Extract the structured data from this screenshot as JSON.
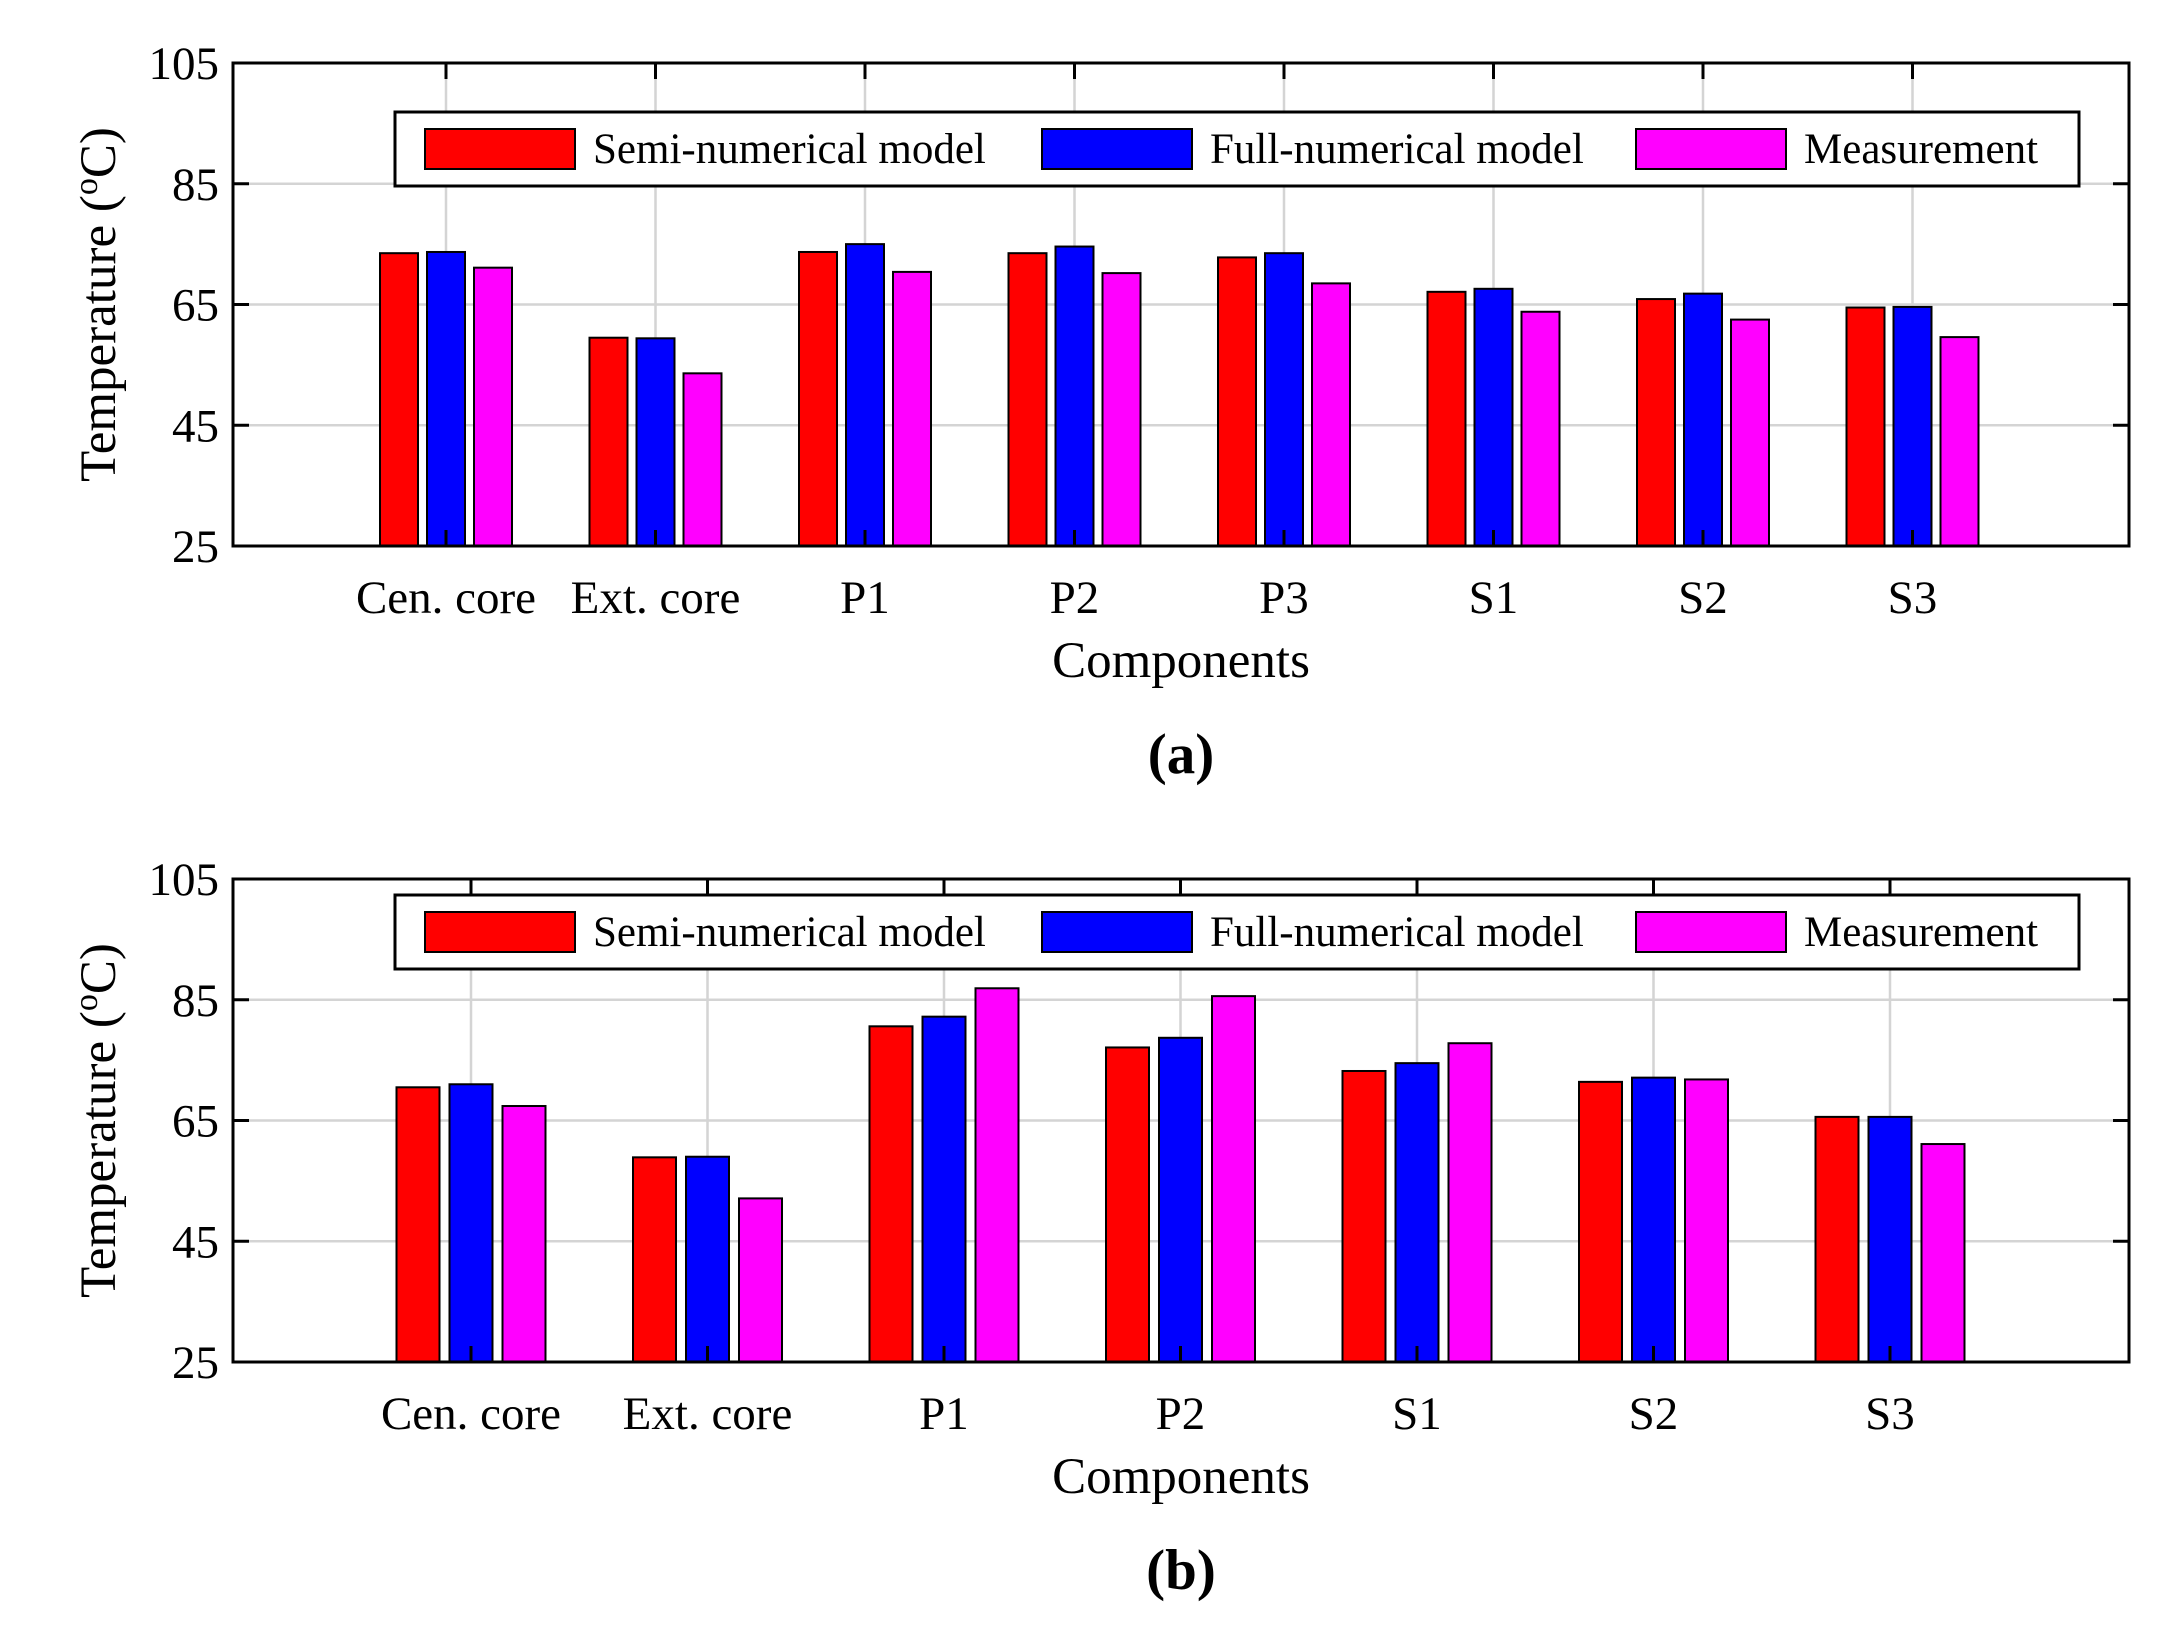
{
  "colors": {
    "semi": "#ff0000",
    "full": "#0000ff",
    "meas": "#ff00ff",
    "grid": "#d4d4d4",
    "axis": "#000000"
  },
  "chart_data": [
    {
      "type": "bar",
      "panel_label": "(a)",
      "categories": [
        "Cen. core",
        "Ext. core",
        "P1",
        "P2",
        "P3",
        "S1",
        "S2",
        "S3"
      ],
      "series": [
        {
          "name": "Semi-numerical model",
          "color_key": "semi",
          "values": [
            73.5,
            59.5,
            73.7,
            73.5,
            72.8,
            67.1,
            65.9,
            64.5
          ]
        },
        {
          "name": "Full-numerical model",
          "color_key": "full",
          "values": [
            73.7,
            59.4,
            75.0,
            74.6,
            73.5,
            67.6,
            66.8,
            64.6
          ]
        },
        {
          "name": "Measurement",
          "color_key": "meas",
          "values": [
            71.1,
            53.6,
            70.4,
            70.2,
            68.5,
            63.8,
            62.5,
            59.6
          ]
        }
      ],
      "xlabel": "Components",
      "ylabel": "Temperature (oC)",
      "ylabel_main": "Temperature (",
      "ylabel_sup": "o",
      "ylabel_unit": "C)",
      "ylim": [
        25,
        105
      ],
      "yticks": [
        25,
        45,
        65,
        85,
        105
      ],
      "grid": true,
      "legend": "top, horizontal"
    },
    {
      "type": "bar",
      "panel_label": "(b)",
      "categories": [
        "Cen. core",
        "Ext. core",
        "P1",
        "P2",
        "S1",
        "S2",
        "S3"
      ],
      "series": [
        {
          "name": "Semi-numerical model",
          "color_key": "semi",
          "values": [
            70.5,
            58.9,
            80.6,
            77.1,
            73.2,
            71.4,
            65.6
          ]
        },
        {
          "name": "Full-numerical model",
          "color_key": "full",
          "values": [
            71.0,
            59.0,
            82.2,
            78.7,
            74.5,
            72.1,
            65.6
          ]
        },
        {
          "name": "Measurement",
          "color_key": "meas",
          "values": [
            67.4,
            52.1,
            86.9,
            85.6,
            77.8,
            71.8,
            61.1
          ]
        }
      ],
      "xlabel": "Components",
      "ylabel": "Temperature (oC)",
      "ylabel_main": "Temperature (",
      "ylabel_sup": "o",
      "ylabel_unit": "C)",
      "ylim": [
        25,
        105
      ],
      "yticks": [
        25,
        45,
        65,
        85,
        105
      ],
      "grid": true,
      "legend": "top, horizontal"
    }
  ]
}
